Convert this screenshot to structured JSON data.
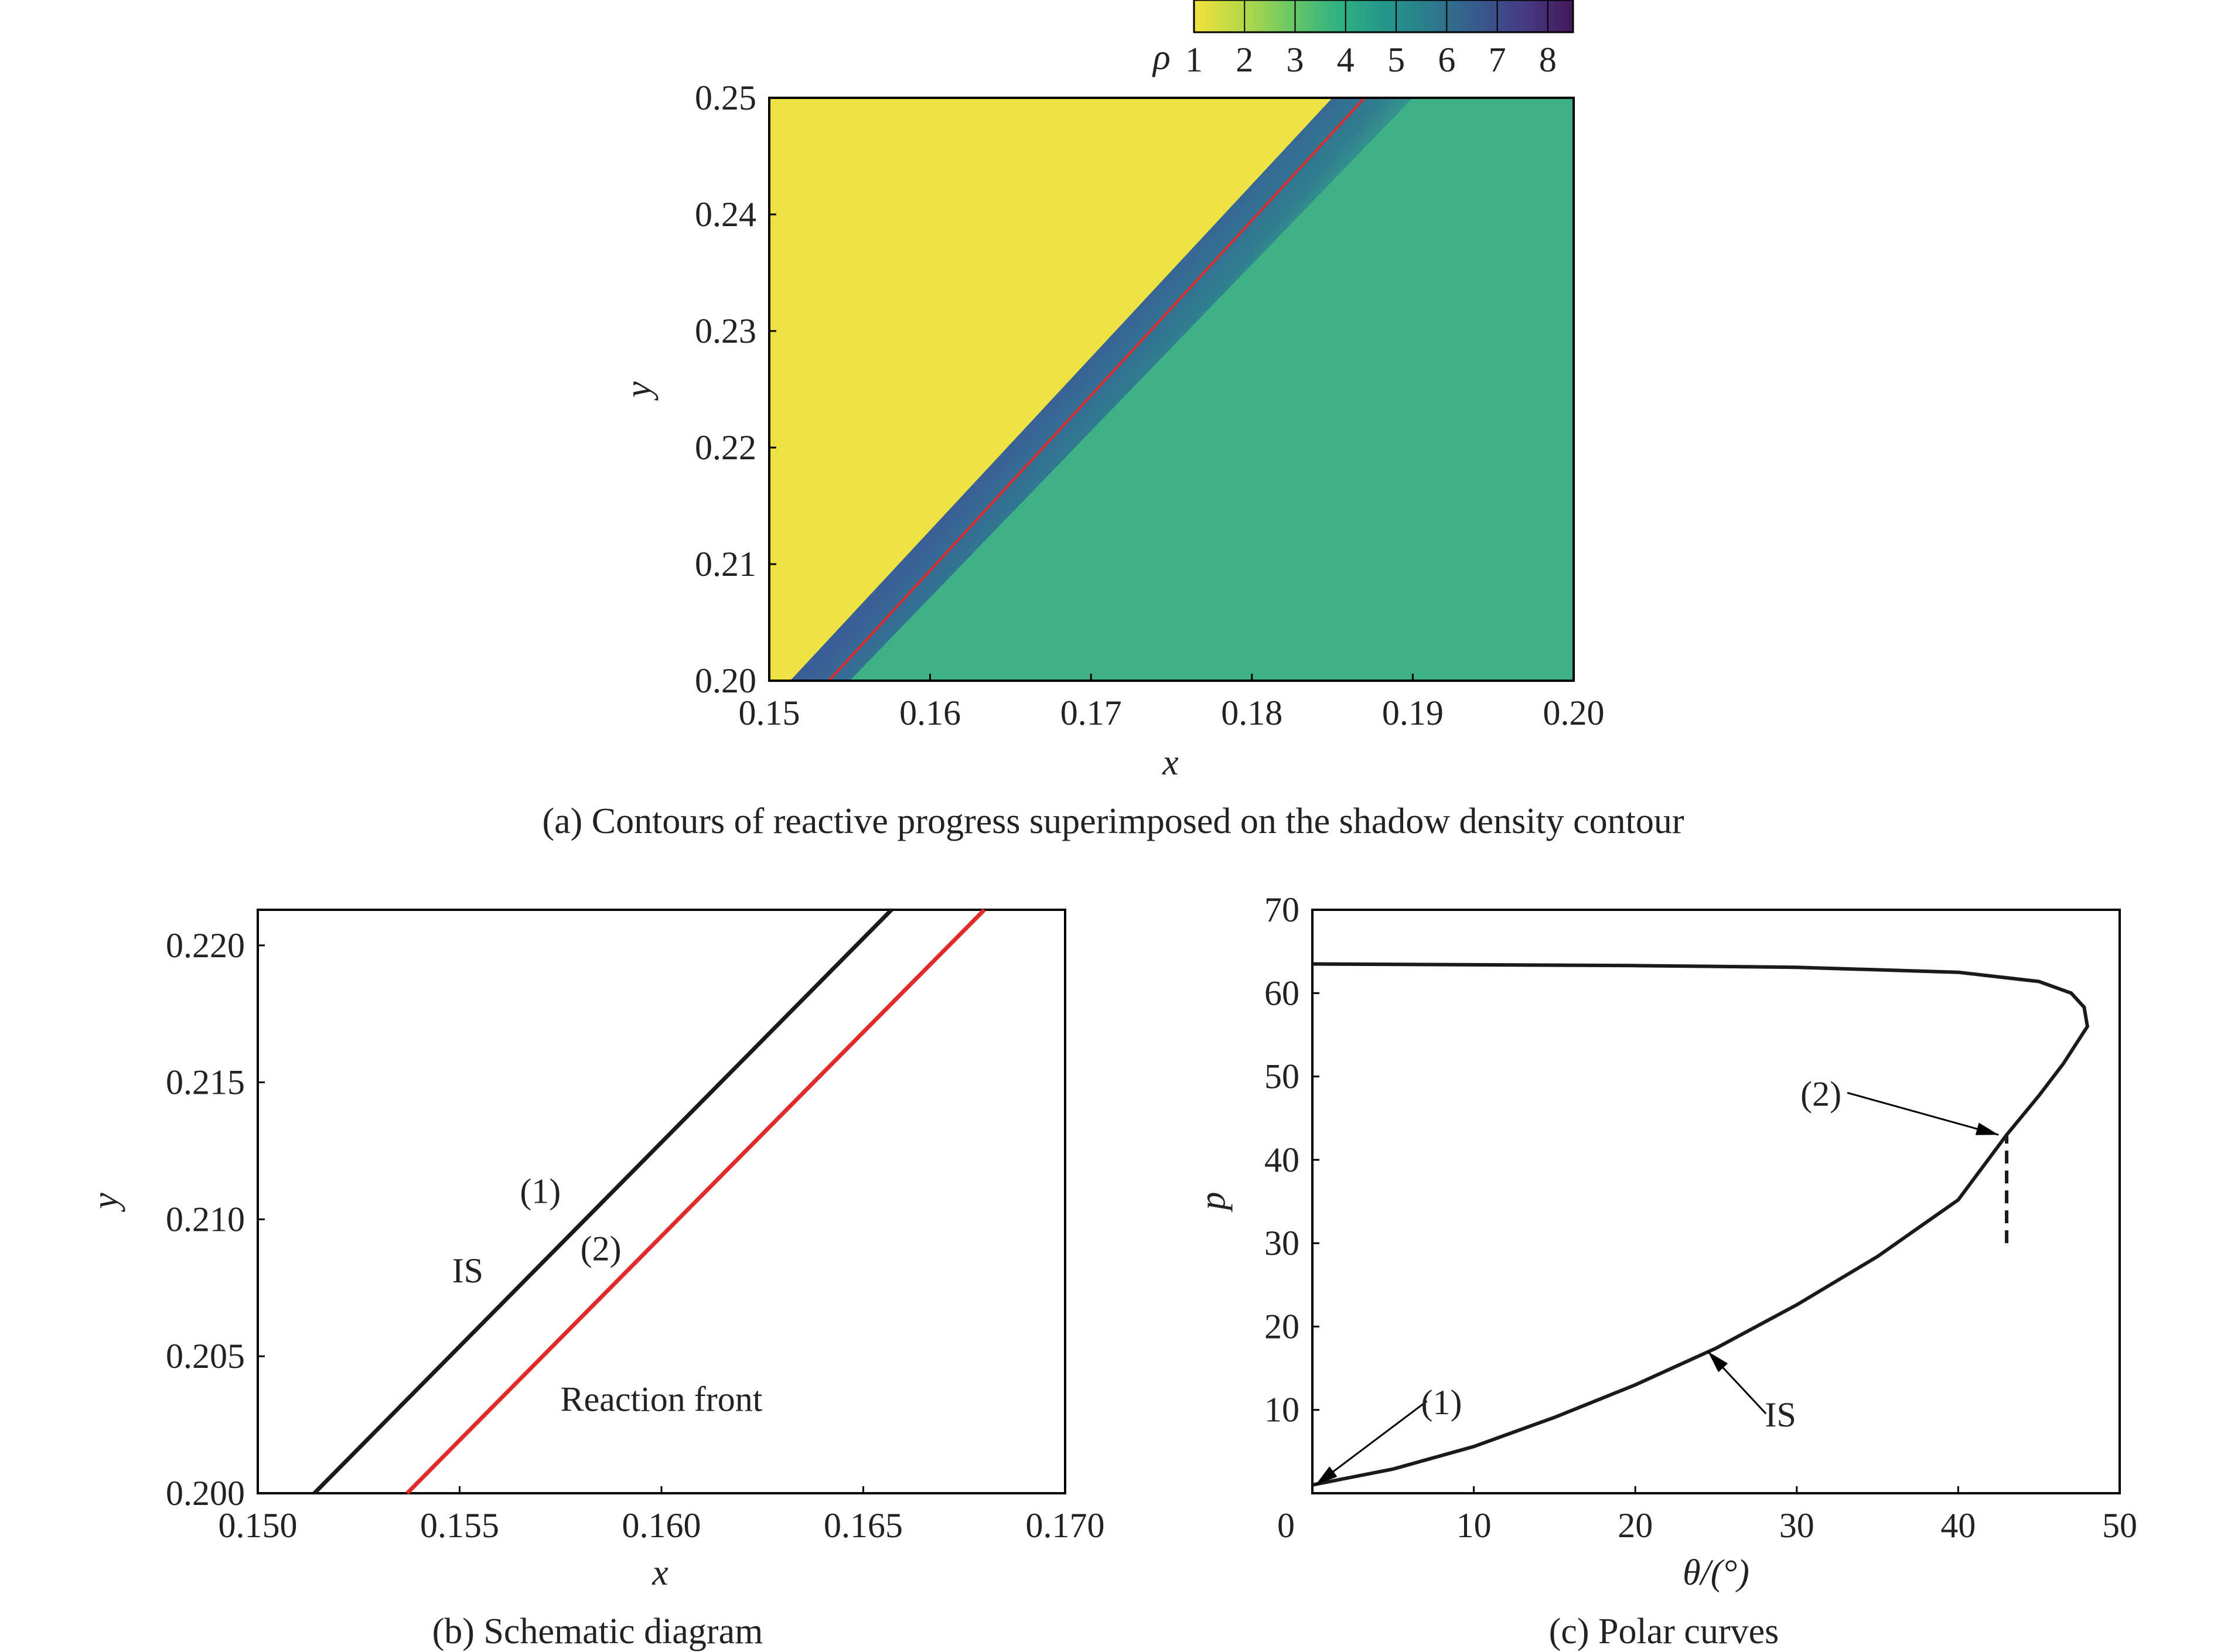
{
  "colors": {
    "unshocked_yellow": "#efe244",
    "shocked_teal": "#3eb286",
    "band_blue": "#3f5d8e",
    "reaction_red": "#e12a2a",
    "shock_black": "#1a1a1a",
    "colormap": [
      "#f3e23e",
      "#b6d947",
      "#6ec864",
      "#31b381",
      "#24978a",
      "#2c7b8d",
      "#38598c",
      "#463a83",
      "#431859"
    ]
  },
  "chart_data": [
    {
      "id": "a",
      "type": "heatmap",
      "caption": "(a) Contours of reactive progress superimposed on the shadow density contour",
      "xlabel": "x",
      "ylabel": "y",
      "xlim": [
        0.15,
        0.2
      ],
      "ylim": [
        0.2,
        0.25
      ],
      "xticks": [
        "0.15",
        "0.16",
        "0.17",
        "0.18",
        "0.19",
        "0.20"
      ],
      "yticks": [
        "0.20",
        "0.21",
        "0.22",
        "0.23",
        "0.24",
        "0.25"
      ],
      "colorbar": {
        "label": "ρ",
        "ticks": [
          "1",
          "2",
          "3",
          "4",
          "5",
          "6",
          "7",
          "8"
        ],
        "range": [
          1,
          8.5
        ],
        "position": "top-right"
      },
      "regions": {
        "unshocked_density": 1.0,
        "shocked_density": 4.0,
        "peak_band_density": 6.5
      },
      "shock_line": {
        "x": [
          0.1513,
          0.185
        ],
        "y": [
          0.2,
          0.25
        ]
      },
      "band_edge": {
        "x": [
          0.153,
          0.188
        ],
        "y": [
          0.2,
          0.25
        ]
      },
      "reaction_front": {
        "x": [
          0.1537,
          0.187
        ],
        "y": [
          0.2,
          0.25
        ]
      }
    },
    {
      "id": "b",
      "type": "line",
      "caption": "(b) Schematic diagram",
      "xlabel": "x",
      "ylabel": "y",
      "xlim": [
        0.15,
        0.17
      ],
      "ylim": [
        0.2,
        0.2213
      ],
      "xticks": [
        "0.150",
        "0.155",
        "0.160",
        "0.165",
        "0.170"
      ],
      "yticks": [
        "0.200",
        "0.205",
        "0.210",
        "0.215",
        "0.220"
      ],
      "series": [
        {
          "label": "IS",
          "x": [
            0.1514,
            0.1657
          ],
          "y": [
            0.2,
            0.2213
          ],
          "color": "#1a1a1a"
        },
        {
          "label": "Reaction front",
          "x": [
            0.1537,
            0.168
          ],
          "y": [
            0.2,
            0.2213
          ],
          "color": "#e12a2a"
        }
      ],
      "annotations": [
        {
          "text": "(1)",
          "x": 0.157,
          "y": 0.2106
        },
        {
          "text": "(2)",
          "x": 0.1585,
          "y": 0.2085
        },
        {
          "text": "IS",
          "x": 0.1552,
          "y": 0.2077
        },
        {
          "text": "Reaction front",
          "x": 0.16,
          "y": 0.203
        }
      ]
    },
    {
      "id": "c",
      "type": "line",
      "caption": "(c) Polar curves",
      "xlabel": "θ/(°)",
      "ylabel": "p",
      "xlim": [
        0,
        50
      ],
      "ylim": [
        0,
        70
      ],
      "xticks": [
        "0",
        "10",
        "20",
        "30",
        "40",
        "50"
      ],
      "yticks": [
        "10",
        "20",
        "30",
        "40",
        "50",
        "60",
        "70"
      ],
      "series": [
        {
          "label": "IS",
          "x": [
            0,
            5,
            10,
            15,
            20,
            25,
            30,
            35,
            40,
            43,
            45,
            46.5,
            47.5,
            48.0,
            47.8,
            47.0,
            45.0,
            40.0,
            30.0,
            20.0,
            10.0,
            0
          ],
          "y": [
            1.0,
            2.9,
            5.6,
            9.1,
            13.0,
            17.4,
            22.6,
            28.4,
            35.2,
            43.0,
            47.7,
            51.5,
            54.5,
            56.0,
            58.3,
            60.0,
            61.4,
            62.5,
            63.1,
            63.3,
            63.4,
            63.5
          ],
          "color": "#1a1a1a"
        }
      ],
      "vertical_marker": {
        "x": 43.0,
        "y": [
          30,
          43
        ],
        "style": "dashed"
      },
      "annotations": [
        {
          "text": "(1)",
          "at": [
            0.2,
            1.0
          ],
          "label_pos": [
            8.0,
            9.5
          ]
        },
        {
          "text": "(2)",
          "at": [
            42.5,
            43.0
          ],
          "label_pos": [
            31.5,
            46.5
          ]
        },
        {
          "text": "IS",
          "at": [
            24.5,
            17.0
          ],
          "label_pos": [
            29.0,
            8.0
          ]
        }
      ]
    }
  ]
}
